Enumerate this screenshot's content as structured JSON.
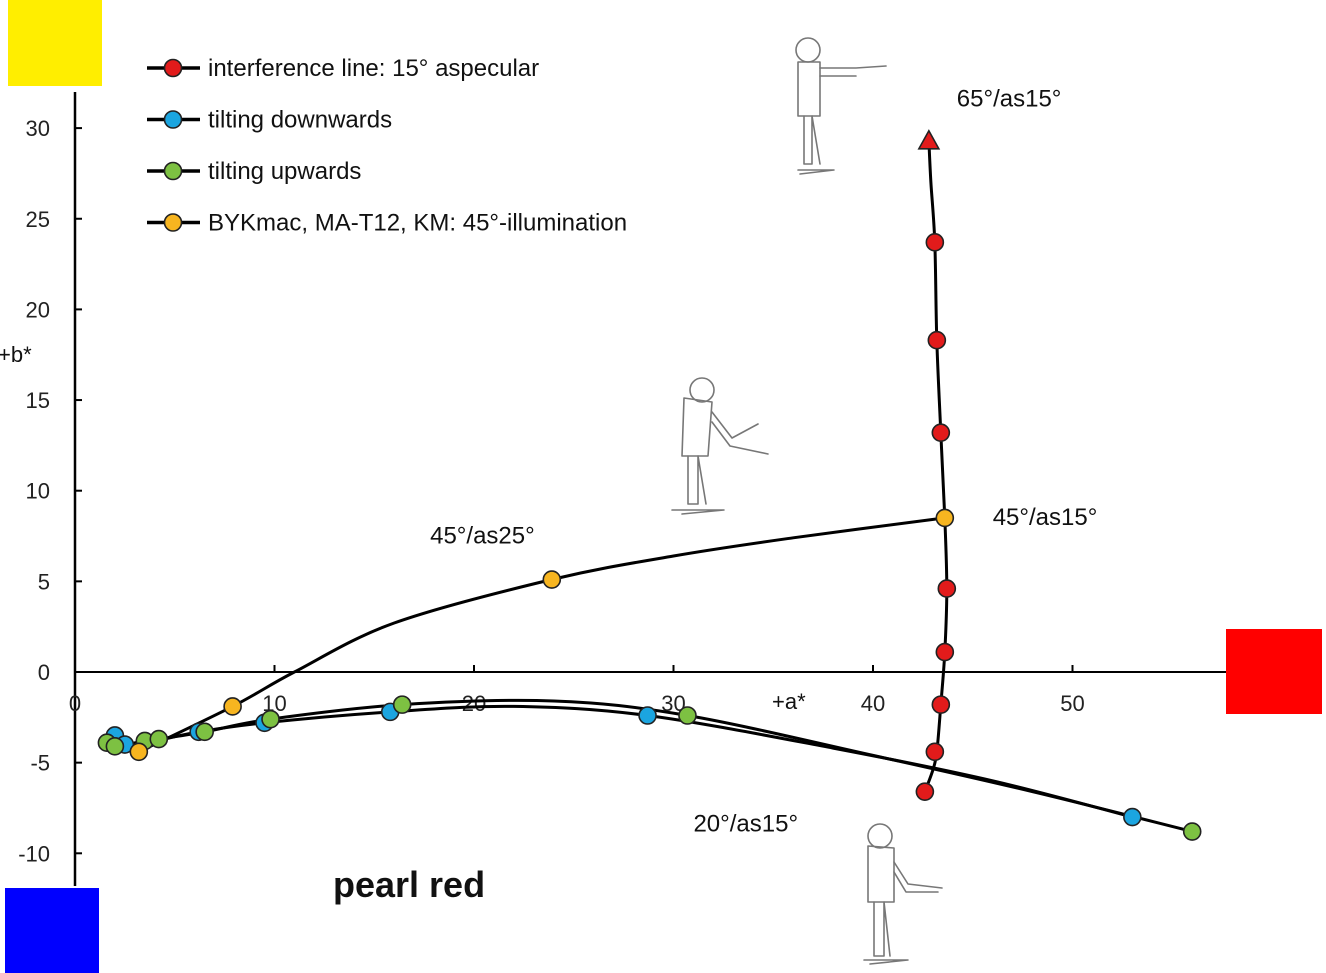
{
  "chart_data": {
    "type": "scatter",
    "title": "pearl red",
    "xlabel": "+a*",
    "ylabel": "+b*",
    "xlim": [
      0,
      57
    ],
    "ylim": [
      -12,
      33
    ],
    "x_ticks": [
      0,
      10,
      20,
      30,
      40,
      50
    ],
    "y_ticks": [
      30,
      25,
      20,
      15,
      10,
      5,
      0,
      -5,
      -10
    ],
    "grid": false,
    "legend_position": "top-left",
    "series": [
      {
        "name": "interference line: 15° aspecular",
        "color": "#e21b1b",
        "marker": "circle",
        "points": [
          [
            42.6,
            -6.6
          ],
          [
            43.1,
            -4.4
          ],
          [
            43.4,
            -1.8
          ],
          [
            43.6,
            1.1
          ],
          [
            43.7,
            4.6
          ],
          [
            43.4,
            13.2
          ],
          [
            43.2,
            18.3
          ],
          [
            43.1,
            23.7
          ]
        ],
        "line": [
          [
            42.6,
            -6.6
          ],
          [
            43.0,
            -5.4
          ],
          [
            43.2,
            -4.4
          ],
          [
            43.4,
            -1.8
          ],
          [
            43.6,
            1.1
          ],
          [
            43.7,
            4.6
          ],
          [
            43.6,
            8.5
          ],
          [
            43.4,
            13.2
          ],
          [
            43.2,
            18.3
          ],
          [
            43.1,
            23.7
          ],
          [
            42.9,
            27.0
          ],
          [
            42.8,
            29.3
          ]
        ],
        "end_marker": {
          "shape": "triangle",
          "x": 42.8,
          "y": 29.3
        }
      },
      {
        "name": "tilting downwards",
        "color": "#1ba5e0",
        "marker": "circle",
        "points": [
          [
            2.0,
            -3.5
          ],
          [
            2.5,
            -4.0
          ],
          [
            6.2,
            -3.3
          ],
          [
            9.5,
            -2.8
          ],
          [
            15.8,
            -2.2
          ],
          [
            28.7,
            -2.4
          ],
          [
            53.0,
            -8.0
          ]
        ],
        "line": [
          [
            2.0,
            -3.5
          ],
          [
            2.5,
            -4.0
          ],
          [
            4.0,
            -3.8
          ],
          [
            6.2,
            -3.3
          ],
          [
            9.5,
            -2.8
          ],
          [
            15.8,
            -2.2
          ],
          [
            22.0,
            -1.9
          ],
          [
            28.7,
            -2.4
          ],
          [
            38.0,
            -4.2
          ],
          [
            46.0,
            -6.0
          ],
          [
            53.0,
            -8.0
          ]
        ]
      },
      {
        "name": "tilting upwards",
        "color": "#7dc142",
        "marker": "circle",
        "points": [
          [
            1.6,
            -3.9
          ],
          [
            2.0,
            -4.1
          ],
          [
            3.5,
            -3.8
          ],
          [
            4.2,
            -3.7
          ],
          [
            6.5,
            -3.3
          ],
          [
            9.8,
            -2.6
          ],
          [
            16.4,
            -1.8
          ],
          [
            30.7,
            -2.4
          ],
          [
            56.0,
            -8.8
          ]
        ],
        "line": [
          [
            1.6,
            -3.9
          ],
          [
            2.0,
            -4.1
          ],
          [
            3.5,
            -3.8
          ],
          [
            4.2,
            -3.7
          ],
          [
            6.5,
            -3.3
          ],
          [
            9.8,
            -2.6
          ],
          [
            16.4,
            -1.8
          ],
          [
            24.0,
            -1.6
          ],
          [
            30.7,
            -2.4
          ],
          [
            40.0,
            -4.6
          ],
          [
            48.0,
            -6.6
          ],
          [
            56.0,
            -8.8
          ]
        ]
      },
      {
        "name": "BYKmac, MA-T12, KM: 45°-illumination",
        "color": "#f7b520",
        "marker": "circle",
        "points": [
          [
            3.2,
            -4.4
          ],
          [
            7.9,
            -1.9
          ],
          [
            23.9,
            5.1
          ],
          [
            43.6,
            8.5
          ]
        ],
        "line": [
          [
            3.2,
            -4.4
          ],
          [
            7.9,
            -1.9
          ],
          [
            11.0,
            0.0
          ],
          [
            16.0,
            2.7
          ],
          [
            23.9,
            5.1
          ],
          [
            30.0,
            6.4
          ],
          [
            36.0,
            7.4
          ],
          [
            43.6,
            8.5
          ]
        ]
      }
    ],
    "annotations": [
      {
        "text": "65°/as15°",
        "x": 44.2,
        "y": 31.2
      },
      {
        "text": "45°/as15°",
        "x": 46.0,
        "y": 8.1
      },
      {
        "text": "45°/as25°",
        "x": 17.8,
        "y": 7.1
      },
      {
        "text": "20°/as15°",
        "x": 31.0,
        "y": -8.8
      }
    ],
    "color_swatches": {
      "yellow": "#ffee00",
      "red": "#ff0000",
      "blue": "#0000ff"
    }
  }
}
